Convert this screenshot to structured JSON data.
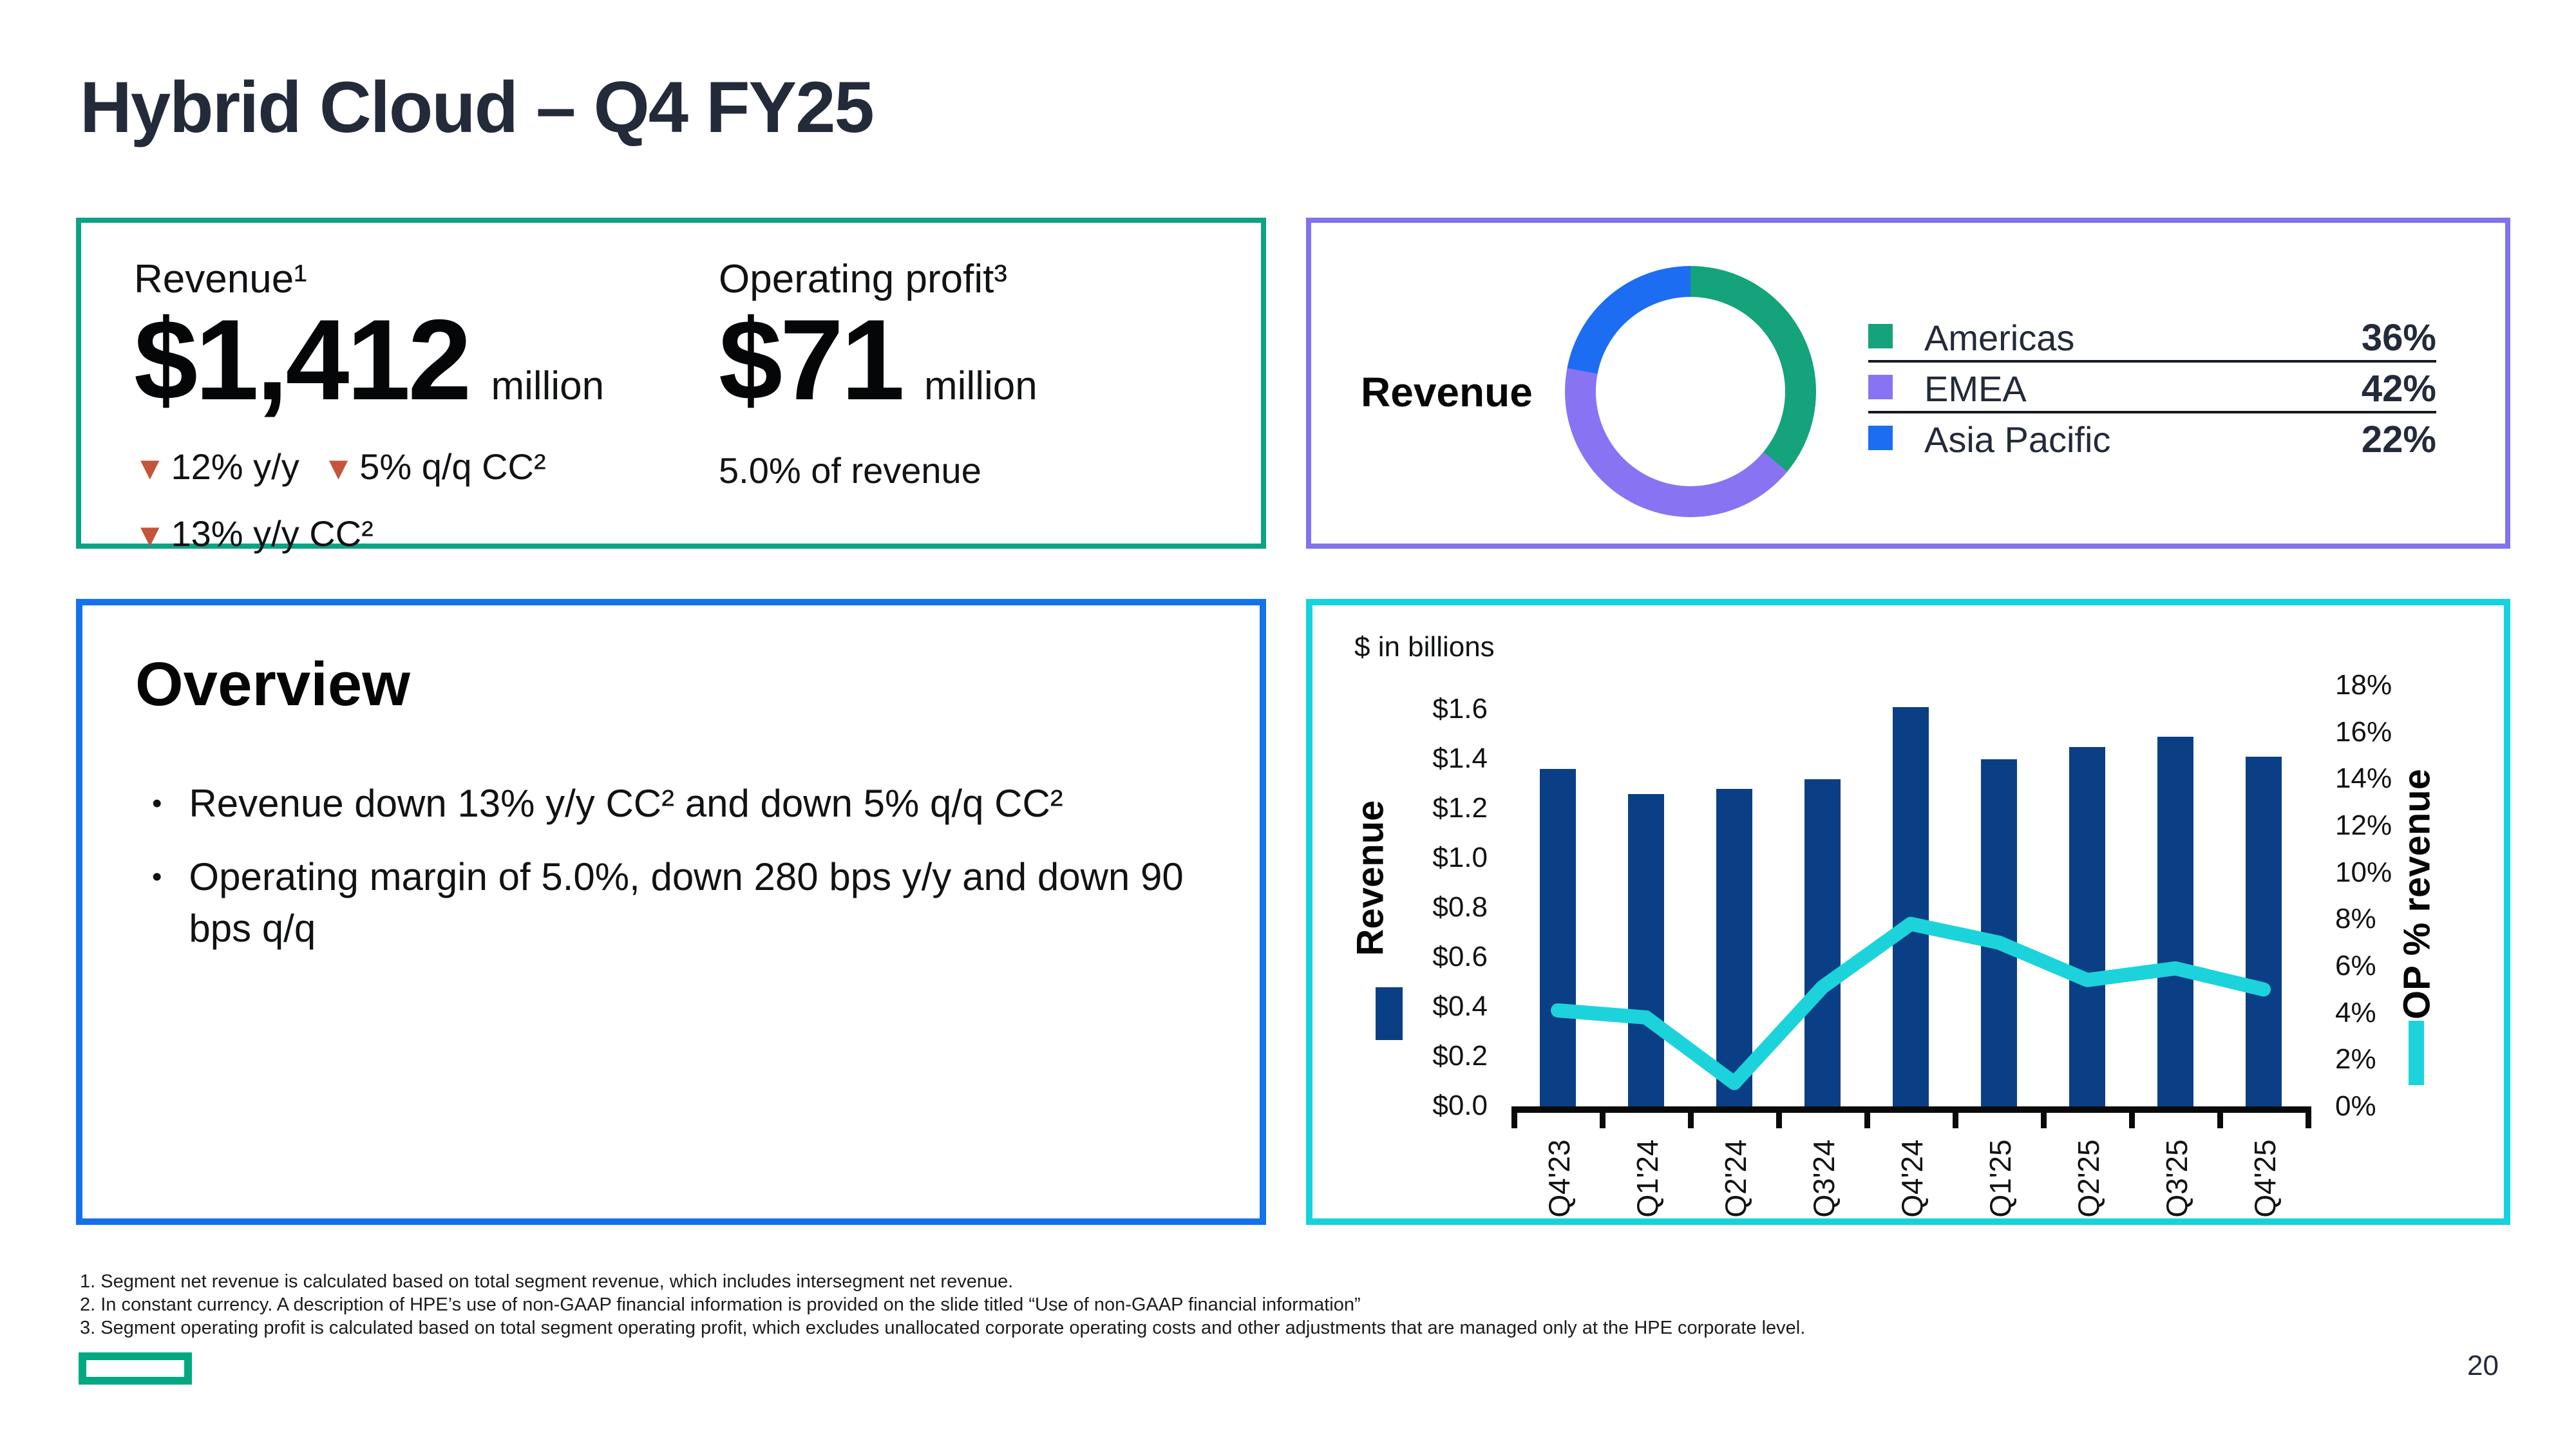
{
  "colors": {
    "title_text": "#232A39",
    "negative": "#C4543C",
    "metrics_box_border": "#0CA384",
    "mix_box_border": "#8172EE",
    "overview_box_border": "#1371EC",
    "chart_box_border": "#14D3DF",
    "bar": "#0B3F85",
    "line": "#1CD3DC",
    "hpe_green": "#01A982"
  },
  "slide": {
    "title": "Hybrid Cloud – Q4 FY25",
    "page_number": "20"
  },
  "icons": {
    "down_arrow": "▼",
    "bullet": "•"
  },
  "metrics": {
    "revenue": {
      "label": "Revenue¹",
      "value": "$1,412",
      "unit": "million",
      "deltas": [
        {
          "text": "12% y/y"
        },
        {
          "text": "5% q/q CC²"
        },
        {
          "text": "13% y/y CC²"
        }
      ]
    },
    "operating_profit": {
      "label": "Operating profit³",
      "value": "$71",
      "unit": "million",
      "subtext": "5.0% of revenue"
    }
  },
  "revenue_mix": {
    "label": "Revenue",
    "legend": [
      {
        "name": "Americas",
        "value": "36%",
        "pct": 36,
        "color": "#14A37B"
      },
      {
        "name": "EMEA",
        "value": "42%",
        "pct": 42,
        "color": "#8874F2"
      },
      {
        "name": "Asia Pacific",
        "value": "22%",
        "pct": 22,
        "color": "#1C6DF2"
      }
    ]
  },
  "overview": {
    "heading": "Overview",
    "bullets": [
      "Revenue down 13% y/y CC²  and down 5% q/q CC²",
      "Operating margin of 5.0%, down 280 bps y/y and down 90 bps q/q"
    ]
  },
  "chart_data": {
    "type": "bar+line",
    "units_note": "$ in billions",
    "categories": [
      "Q4'23",
      "Q1'24",
      "Q2'24",
      "Q3'24",
      "Q4'24",
      "Q1'25",
      "Q2'25",
      "Q3'25",
      "Q4'25"
    ],
    "series": [
      {
        "name": "Revenue",
        "type": "bar",
        "axis": "left",
        "color": "#0B3F85",
        "values": [
          1.36,
          1.26,
          1.28,
          1.32,
          1.61,
          1.4,
          1.45,
          1.49,
          1.41
        ]
      },
      {
        "name": "OP % revenue",
        "type": "line",
        "axis": "right",
        "color": "#1CD3DC",
        "values": [
          4.1,
          3.8,
          1.0,
          5.1,
          7.8,
          7.0,
          5.4,
          5.9,
          5.0
        ]
      }
    ],
    "left_axis": {
      "title": "Revenue",
      "min": 0,
      "max": 1.6,
      "tick_step": 0.2,
      "tick_labels": [
        "$1.6",
        "$1.4",
        "$1.2",
        "$1.0",
        "$0.8",
        "$0.6",
        "$0.4",
        "$0.2",
        "$0.0"
      ]
    },
    "right_axis": {
      "title": "OP % revenue",
      "min": 0,
      "max": 18,
      "tick_step": 2,
      "tick_labels": [
        "18%",
        "16%",
        "14%",
        "12%",
        "10%",
        "8%",
        "6%",
        "4%",
        "2%",
        "0%"
      ]
    },
    "legend_position": "sides",
    "grid": false
  },
  "footnotes": [
    "1. Segment net revenue is calculated based on total segment revenue, which includes intersegment net revenue.",
    "2. In constant currency. A description of HPE’s use of non-GAAP financial information is provided on the slide titled “Use of non-GAAP financial information”",
    "3. Segment operating profit is calculated based on total segment operating profit, which excludes unallocated corporate operating costs and other adjustments that are managed only at the HPE corporate level."
  ]
}
